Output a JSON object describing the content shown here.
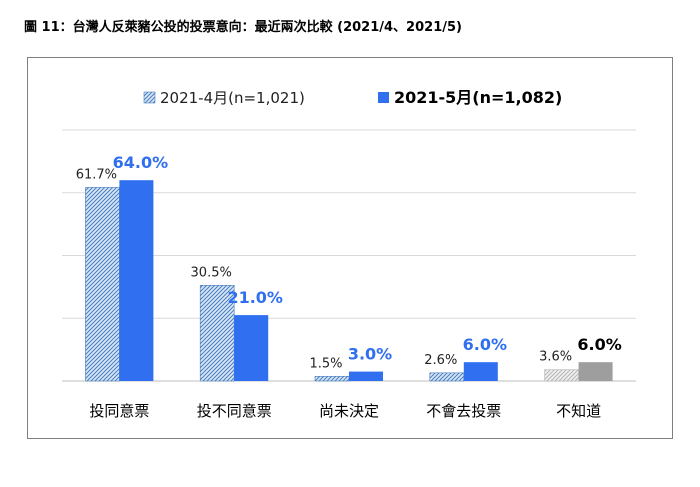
{
  "title": "圖 11：台灣人反萊豬公投的投票意向：最近兩次比較 (2021/4、2021/5)",
  "chart_data": {
    "type": "bar",
    "categories": [
      "投同意票",
      "投不同意票",
      "尚未決定",
      "不會去投票",
      "不知道"
    ],
    "series": [
      {
        "name": "2021-4月(n=1,021)",
        "values": [
          61.7,
          30.5,
          1.5,
          2.6,
          3.6
        ],
        "labels": [
          "61.7%",
          "30.5%",
          "1.5%",
          "2.6%",
          "3.6%"
        ]
      },
      {
        "name": "2021-5月(n=1,082)",
        "values": [
          64.0,
          21.0,
          3.0,
          6.0,
          6.0
        ],
        "labels": [
          "64.0%",
          "21.0%",
          "3.0%",
          "6.0%",
          "6.0%"
        ]
      }
    ],
    "ylim": [
      0,
      80
    ],
    "grid": true,
    "legend_position": "top",
    "colors": {
      "series1_fill": "#d8e6f7",
      "series1_hatch": "#4a7fc0",
      "series2_fill": "#2f6ff0",
      "series2_label": "#2f6ff0",
      "last_category_series1": "#dcdcdc",
      "last_category_series2": "#9e9e9e",
      "last_category_label": "#000000",
      "gridline": "#d9d9d9"
    }
  }
}
